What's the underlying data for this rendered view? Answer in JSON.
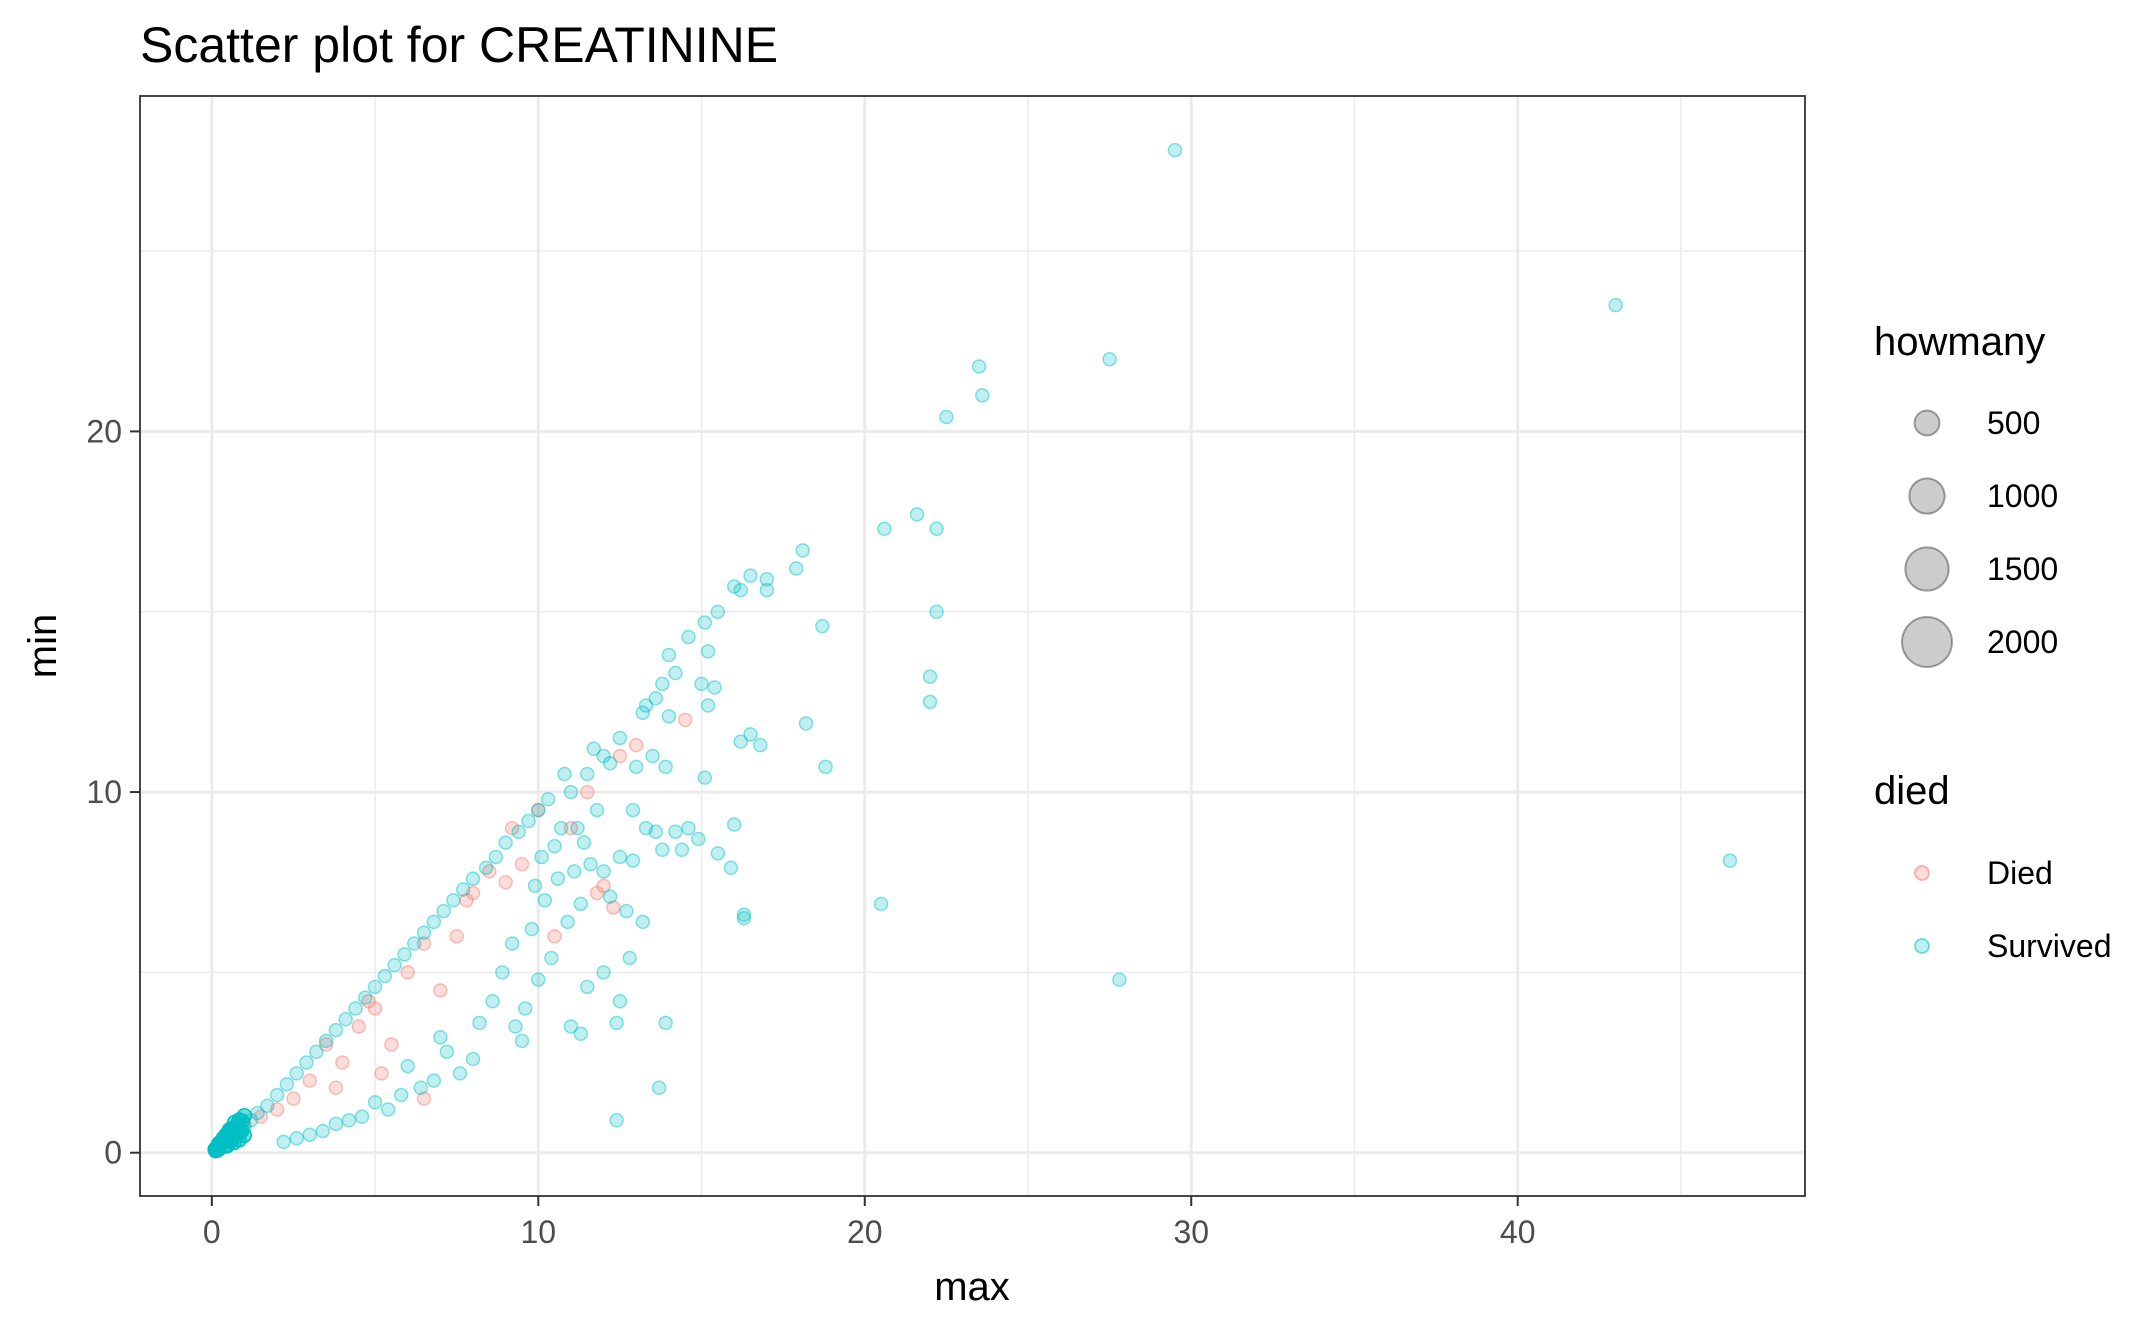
{
  "chart_data": {
    "type": "scatter",
    "title": "Scatter plot for CREATININE",
    "xlabel": "max",
    "ylabel": "min",
    "xlim": [
      -2.2,
      48.8
    ],
    "ylim": [
      -1.2,
      29.3
    ],
    "x_ticks": [
      0,
      10,
      20,
      30,
      40
    ],
    "y_ticks": [
      0,
      10,
      20
    ],
    "grid": true,
    "legend_position": "right",
    "size_legend": {
      "title": "howmany",
      "entries": [
        {
          "label": "500",
          "value": 500
        },
        {
          "label": "1000",
          "value": 1000
        },
        {
          "label": "1500",
          "value": 1500
        },
        {
          "label": "2000",
          "value": 2000
        }
      ]
    },
    "color_legend": {
      "title": "died",
      "entries": [
        {
          "label": "Died",
          "color": "#F8766D"
        },
        {
          "label": "Survived",
          "color": "#00BFC4"
        }
      ]
    },
    "series": [
      {
        "name": "Died",
        "color": "#F8766D",
        "points": [
          [
            14.5,
            12.0
          ],
          [
            12.0,
            7.4
          ],
          [
            13.0,
            11.3
          ],
          [
            12.3,
            6.8
          ],
          [
            11.0,
            9.0
          ],
          [
            9.0,
            7.5
          ],
          [
            8.0,
            7.2
          ],
          [
            6.5,
            1.5
          ],
          [
            4.5,
            3.5
          ],
          [
            5.0,
            4.0
          ],
          [
            3.5,
            3.0
          ],
          [
            7.5,
            6.0
          ],
          [
            10.0,
            9.5
          ],
          [
            8.5,
            7.8
          ],
          [
            6.0,
            5.0
          ],
          [
            5.5,
            3.0
          ],
          [
            4.0,
            2.5
          ],
          [
            3.0,
            2.0
          ],
          [
            2.5,
            1.5
          ],
          [
            7.0,
            4.5
          ],
          [
            9.5,
            8.0
          ],
          [
            11.5,
            10.0
          ],
          [
            6.5,
            5.8
          ],
          [
            4.8,
            4.2
          ],
          [
            2.0,
            1.2
          ],
          [
            1.5,
            1.0
          ],
          [
            1.0,
            0.8
          ],
          [
            0.8,
            0.6
          ],
          [
            12.5,
            11.0
          ],
          [
            10.5,
            6.0
          ],
          [
            9.2,
            9.0
          ],
          [
            5.2,
            2.2
          ],
          [
            3.8,
            1.8
          ],
          [
            7.8,
            7.0
          ],
          [
            11.8,
            7.2
          ]
        ]
      },
      {
        "name": "Survived",
        "color": "#00BFC4",
        "points": [
          [
            29.5,
            27.8
          ],
          [
            43.0,
            23.5
          ],
          [
            46.5,
            8.1
          ],
          [
            27.8,
            4.8
          ],
          [
            27.5,
            22.0
          ],
          [
            23.5,
            21.8
          ],
          [
            23.6,
            21.0
          ],
          [
            22.5,
            20.4
          ],
          [
            21.6,
            17.7
          ],
          [
            22.2,
            17.3
          ],
          [
            20.6,
            17.3
          ],
          [
            18.1,
            16.7
          ],
          [
            17.9,
            16.2
          ],
          [
            17.0,
            15.9
          ],
          [
            16.5,
            16.0
          ],
          [
            17.0,
            15.6
          ],
          [
            16.2,
            15.6
          ],
          [
            15.5,
            15.0
          ],
          [
            15.1,
            14.7
          ],
          [
            16.0,
            15.7
          ],
          [
            14.6,
            14.3
          ],
          [
            18.7,
            14.6
          ],
          [
            22.2,
            15.0
          ],
          [
            22.0,
            13.2
          ],
          [
            22.0,
            12.5
          ],
          [
            18.2,
            11.9
          ],
          [
            18.8,
            10.7
          ],
          [
            16.8,
            11.3
          ],
          [
            16.5,
            11.6
          ],
          [
            16.2,
            11.4
          ],
          [
            15.1,
            10.4
          ],
          [
            15.0,
            13.0
          ],
          [
            15.4,
            12.9
          ],
          [
            15.2,
            12.4
          ],
          [
            15.2,
            13.9
          ],
          [
            14.0,
            13.8
          ],
          [
            14.2,
            13.3
          ],
          [
            13.8,
            13.0
          ],
          [
            13.6,
            12.6
          ],
          [
            13.3,
            12.4
          ],
          [
            13.2,
            12.2
          ],
          [
            14.0,
            12.1
          ],
          [
            13.9,
            10.7
          ],
          [
            13.5,
            11.0
          ],
          [
            13.0,
            10.7
          ],
          [
            12.9,
            9.5
          ],
          [
            13.3,
            9.0
          ],
          [
            13.6,
            8.9
          ],
          [
            14.2,
            8.9
          ],
          [
            14.6,
            9.0
          ],
          [
            14.9,
            8.7
          ],
          [
            13.8,
            8.4
          ],
          [
            14.4,
            8.4
          ],
          [
            15.5,
            8.3
          ],
          [
            15.9,
            7.9
          ],
          [
            16.0,
            9.1
          ],
          [
            16.3,
            6.6
          ],
          [
            16.3,
            6.5
          ],
          [
            20.5,
            6.9
          ],
          [
            12.4,
            0.9
          ],
          [
            13.7,
            1.8
          ],
          [
            13.9,
            3.6
          ],
          [
            12.4,
            3.6
          ],
          [
            11.3,
            3.3
          ],
          [
            9.5,
            3.1
          ],
          [
            11.0,
            3.5
          ],
          [
            12.5,
            4.2
          ],
          [
            12.0,
            5.0
          ],
          [
            11.5,
            4.6
          ],
          [
            12.8,
            5.4
          ],
          [
            13.2,
            6.4
          ],
          [
            12.7,
            6.7
          ],
          [
            12.2,
            7.1
          ],
          [
            12.0,
            7.8
          ],
          [
            11.6,
            8.0
          ],
          [
            12.5,
            8.2
          ],
          [
            12.9,
            8.1
          ],
          [
            11.2,
            9.0
          ],
          [
            11.8,
            9.5
          ],
          [
            10.5,
            8.5
          ],
          [
            11.0,
            10.0
          ],
          [
            11.5,
            10.5
          ],
          [
            12.0,
            11.0
          ],
          [
            12.5,
            11.5
          ],
          [
            12.2,
            10.8
          ],
          [
            11.7,
            11.2
          ],
          [
            10.8,
            10.5
          ],
          [
            10.3,
            9.8
          ],
          [
            10.0,
            9.5
          ],
          [
            9.7,
            9.2
          ],
          [
            9.4,
            8.9
          ],
          [
            9.0,
            8.6
          ],
          [
            8.7,
            8.2
          ],
          [
            8.4,
            7.9
          ],
          [
            8.0,
            7.6
          ],
          [
            7.7,
            7.3
          ],
          [
            7.4,
            7.0
          ],
          [
            7.1,
            6.7
          ],
          [
            6.8,
            6.4
          ],
          [
            6.5,
            6.1
          ],
          [
            6.2,
            5.8
          ],
          [
            5.9,
            5.5
          ],
          [
            5.6,
            5.2
          ],
          [
            5.3,
            4.9
          ],
          [
            5.0,
            4.6
          ],
          [
            4.7,
            4.3
          ],
          [
            4.4,
            4.0
          ],
          [
            4.1,
            3.7
          ],
          [
            3.8,
            3.4
          ],
          [
            3.5,
            3.1
          ],
          [
            3.2,
            2.8
          ],
          [
            2.9,
            2.5
          ],
          [
            2.6,
            2.2
          ],
          [
            2.3,
            1.9
          ],
          [
            2.0,
            1.6
          ],
          [
            1.7,
            1.3
          ],
          [
            1.4,
            1.1
          ],
          [
            1.2,
            0.9
          ],
          [
            1.0,
            0.7
          ],
          [
            0.8,
            0.5
          ],
          [
            9.8,
            6.2
          ],
          [
            9.2,
            5.8
          ],
          [
            8.9,
            5.0
          ],
          [
            8.6,
            4.2
          ],
          [
            8.2,
            3.6
          ],
          [
            8.0,
            2.6
          ],
          [
            7.6,
            2.2
          ],
          [
            7.2,
            2.8
          ],
          [
            7.0,
            3.2
          ],
          [
            6.8,
            2.0
          ],
          [
            6.4,
            1.8
          ],
          [
            6.0,
            2.4
          ],
          [
            5.8,
            1.6
          ],
          [
            5.4,
            1.2
          ],
          [
            5.0,
            1.4
          ],
          [
            4.6,
            1.0
          ],
          [
            4.2,
            0.9
          ],
          [
            3.8,
            0.8
          ],
          [
            3.4,
            0.6
          ],
          [
            3.0,
            0.5
          ],
          [
            2.6,
            0.4
          ],
          [
            2.2,
            0.3
          ],
          [
            10.2,
            7.0
          ],
          [
            10.6,
            7.6
          ],
          [
            10.9,
            6.4
          ],
          [
            11.3,
            6.9
          ],
          [
            10.4,
            5.4
          ],
          [
            10.0,
            4.8
          ],
          [
            9.6,
            4.0
          ],
          [
            9.3,
            3.5
          ],
          [
            11.1,
            7.8
          ],
          [
            11.4,
            8.6
          ],
          [
            10.7,
            9.0
          ],
          [
            10.1,
            8.2
          ],
          [
            9.9,
            7.4
          ]
        ]
      }
    ]
  }
}
